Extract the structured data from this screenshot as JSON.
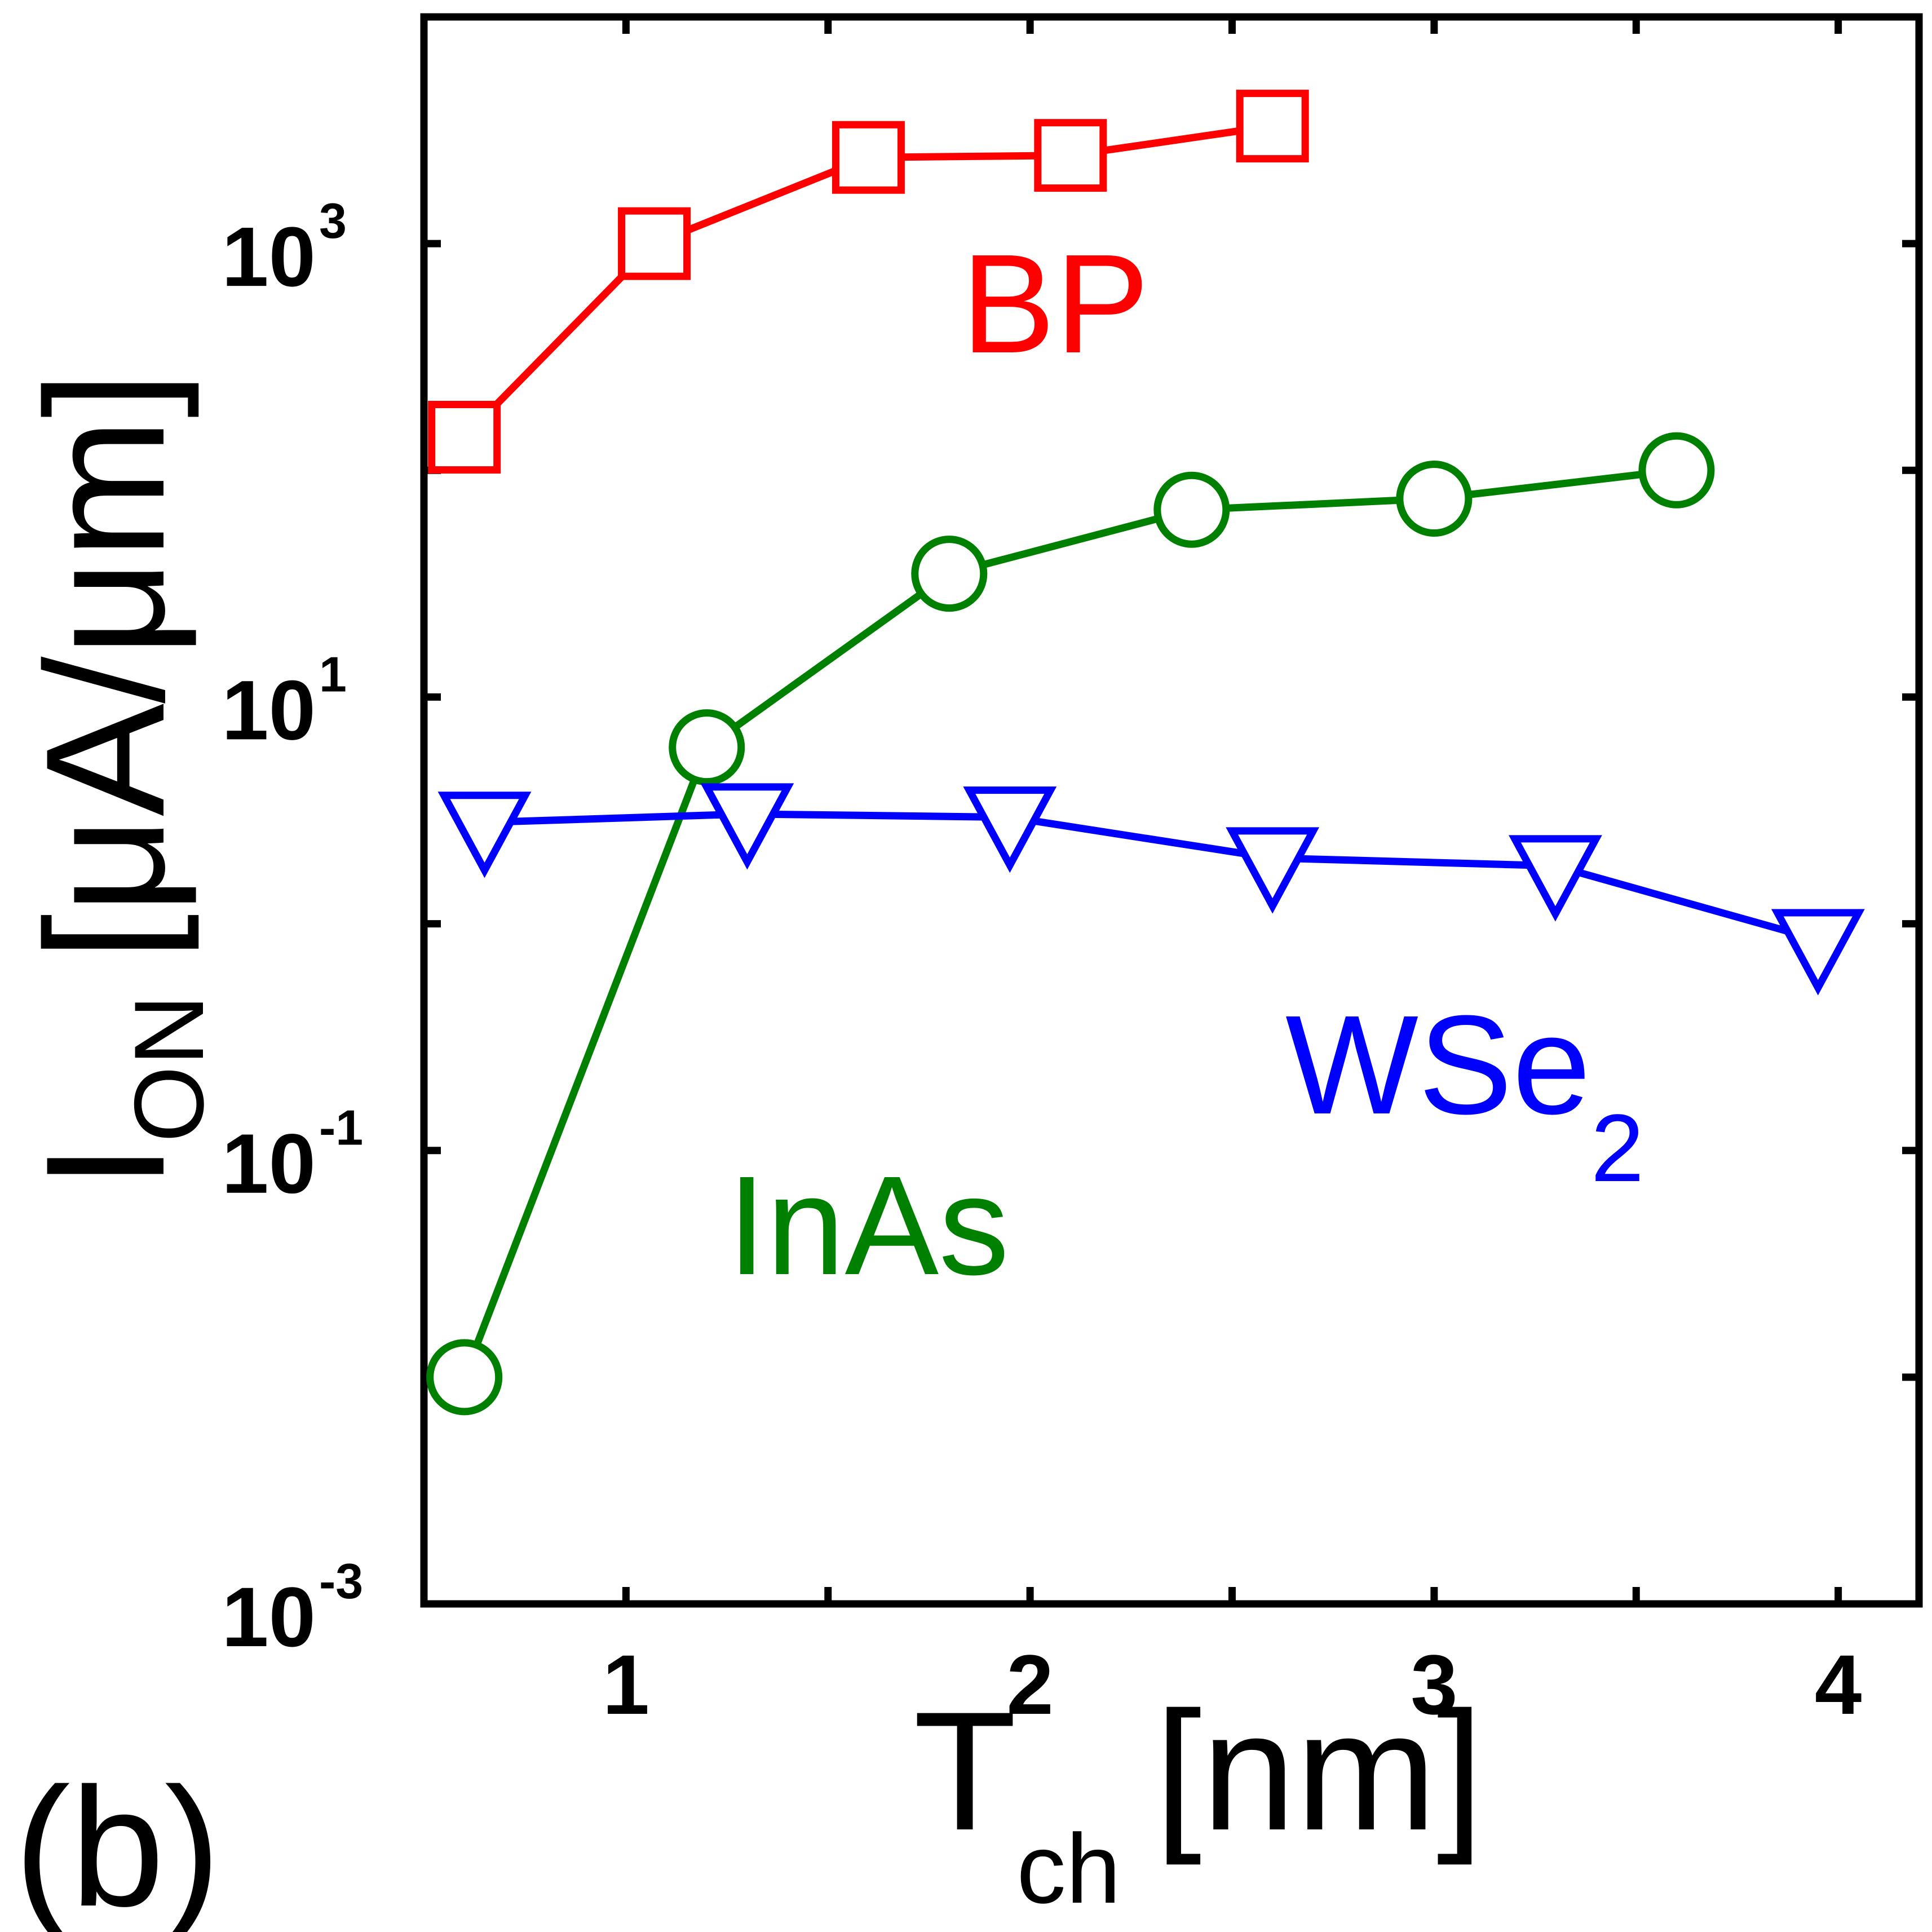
{
  "chart_data": {
    "type": "line",
    "panel_label": "(b)",
    "xlabel": {
      "main": "T",
      "subscript": "ch",
      "units": "[nm]"
    },
    "ylabel": {
      "main": "I",
      "subscript": "ON",
      "units": "[μA/μm]"
    },
    "x_scale": "linear",
    "y_scale": "log",
    "xlim": [
      0.5,
      4.2
    ],
    "ylim": [
      0.001,
      10000
    ],
    "x_ticks": [
      0.5,
      1,
      1.5,
      2,
      2.5,
      3,
      3.5,
      4
    ],
    "x_tick_labels": [
      {
        "value": 1,
        "text": "1"
      },
      {
        "value": 2,
        "text": "2"
      },
      {
        "value": 3,
        "text": "3"
      },
      {
        "value": 4,
        "text": "4"
      }
    ],
    "y_ticks": [
      0.001,
      0.01,
      0.1,
      1,
      10,
      100,
      1000
    ],
    "y_tick_labels": [
      {
        "value": 0.001,
        "base": "10",
        "exp": "-3"
      },
      {
        "value": 0.1,
        "base": "10",
        "exp": "-1"
      },
      {
        "value": 10,
        "base": "10",
        "exp": "1"
      },
      {
        "value": 1000,
        "base": "10",
        "exp": "3"
      }
    ],
    "grid": false,
    "series": [
      {
        "name": "BP",
        "color": "#ff0000",
        "marker": "square",
        "x": [
          0.6,
          1.07,
          1.6,
          2.1,
          2.6
        ],
        "y": [
          140,
          1000,
          2400,
          2450,
          3300
        ],
        "annotation": "BP"
      },
      {
        "name": "InAs",
        "color": "#008000",
        "marker": "circle",
        "x": [
          0.6,
          1.2,
          1.8,
          2.4,
          3.0,
          3.6
        ],
        "y": [
          0.01,
          6.0,
          35,
          67,
          75,
          100
        ],
        "annotation": "InAs"
      },
      {
        "name": "WSe2",
        "color": "#0000ff",
        "marker": "triangle-down",
        "x": [
          0.65,
          1.3,
          1.95,
          2.6,
          3.3,
          3.95
        ],
        "y": [
          2.8,
          3.05,
          2.95,
          1.95,
          1.8,
          0.85
        ],
        "annotation": {
          "base": "WSe",
          "subscript": "2"
        }
      }
    ]
  }
}
